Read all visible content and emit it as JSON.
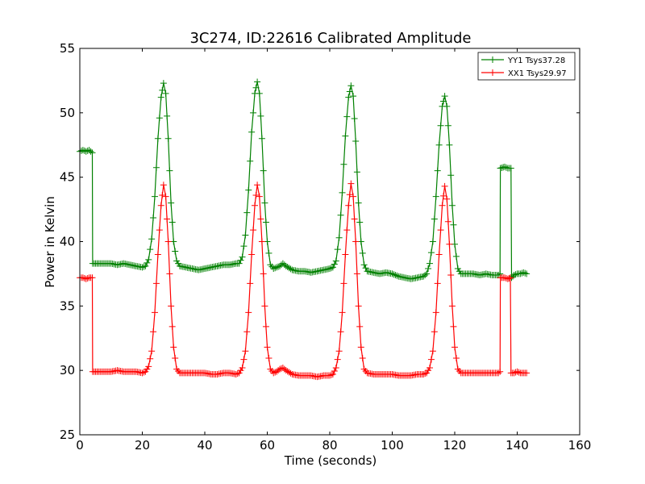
{
  "chart_data": {
    "type": "line",
    "title": "3C274, ID:22616 Calibrated Amplitude",
    "xlabel": "Time (seconds)",
    "ylabel": "Power in Kelvin",
    "xlim": [
      0,
      160
    ],
    "ylim": [
      25,
      55
    ],
    "xticks": [
      0,
      20,
      40,
      60,
      80,
      100,
      120,
      140,
      160
    ],
    "yticks": [
      25,
      30,
      35,
      40,
      45,
      50,
      55
    ],
    "grid": false,
    "legend_position": "top-right",
    "marker": "+",
    "series": [
      {
        "name": "YY1 Tsys37.28",
        "color": "#008000",
        "points": [
          [
            0.0,
            47.0
          ],
          [
            1.0,
            47.1
          ],
          [
            2.0,
            47.0
          ],
          [
            3.0,
            47.1
          ],
          [
            4.0,
            46.9
          ],
          [
            4.1,
            38.3
          ],
          [
            6.0,
            38.3
          ],
          [
            8.0,
            38.3
          ],
          [
            10.0,
            38.3
          ],
          [
            12.0,
            38.2
          ],
          [
            14.0,
            38.3
          ],
          [
            16.0,
            38.2
          ],
          [
            18.0,
            38.1
          ],
          [
            20.0,
            38.0
          ],
          [
            21.0,
            38.1
          ],
          [
            22.0,
            38.6
          ],
          [
            23.0,
            40.2
          ],
          [
            24.0,
            43.5
          ],
          [
            25.0,
            48.0
          ],
          [
            26.0,
            51.2
          ],
          [
            26.8,
            52.3
          ],
          [
            27.5,
            51.5
          ],
          [
            28.3,
            48.0
          ],
          [
            29.2,
            43.0
          ],
          [
            30.0,
            40.0
          ],
          [
            31.0,
            38.5
          ],
          [
            32.0,
            38.1
          ],
          [
            34.0,
            38.0
          ],
          [
            36.0,
            37.9
          ],
          [
            38.0,
            37.8
          ],
          [
            40.0,
            37.9
          ],
          [
            42.0,
            38.0
          ],
          [
            44.0,
            38.1
          ],
          [
            46.0,
            38.2
          ],
          [
            48.0,
            38.2
          ],
          [
            50.0,
            38.3
          ],
          [
            51.0,
            38.3
          ],
          [
            52.0,
            38.8
          ],
          [
            53.0,
            40.5
          ],
          [
            54.0,
            44.0
          ],
          [
            55.0,
            48.5
          ],
          [
            56.0,
            51.5
          ],
          [
            56.8,
            52.4
          ],
          [
            57.5,
            51.5
          ],
          [
            58.3,
            48.0
          ],
          [
            59.2,
            43.0
          ],
          [
            60.0,
            40.0
          ],
          [
            61.0,
            38.2
          ],
          [
            62.0,
            37.9
          ],
          [
            63.0,
            38.0
          ],
          [
            64.0,
            38.1
          ],
          [
            65.0,
            38.3
          ],
          [
            66.0,
            38.1
          ],
          [
            68.0,
            37.8
          ],
          [
            70.0,
            37.7
          ],
          [
            72.0,
            37.7
          ],
          [
            74.0,
            37.6
          ],
          [
            76.0,
            37.7
          ],
          [
            78.0,
            37.8
          ],
          [
            80.0,
            37.9
          ],
          [
            81.0,
            38.0
          ],
          [
            82.0,
            38.5
          ],
          [
            83.0,
            40.3
          ],
          [
            84.0,
            43.8
          ],
          [
            85.0,
            48.2
          ],
          [
            86.0,
            51.2
          ],
          [
            86.8,
            52.1
          ],
          [
            87.5,
            51.3
          ],
          [
            88.3,
            47.8
          ],
          [
            89.2,
            43.0
          ],
          [
            90.0,
            40.0
          ],
          [
            91.0,
            38.2
          ],
          [
            92.0,
            37.7
          ],
          [
            94.0,
            37.6
          ],
          [
            96.0,
            37.5
          ],
          [
            98.0,
            37.6
          ],
          [
            100.0,
            37.5
          ],
          [
            102.0,
            37.3
          ],
          [
            104.0,
            37.2
          ],
          [
            106.0,
            37.1
          ],
          [
            108.0,
            37.2
          ],
          [
            110.0,
            37.3
          ],
          [
            111.0,
            37.5
          ],
          [
            112.0,
            38.3
          ],
          [
            113.0,
            40.0
          ],
          [
            114.0,
            43.5
          ],
          [
            115.0,
            47.5
          ],
          [
            116.0,
            50.5
          ],
          [
            116.8,
            51.3
          ],
          [
            117.5,
            50.5
          ],
          [
            118.3,
            47.5
          ],
          [
            119.2,
            42.8
          ],
          [
            120.0,
            39.8
          ],
          [
            121.0,
            37.9
          ],
          [
            122.0,
            37.5
          ],
          [
            124.0,
            37.5
          ],
          [
            126.0,
            37.5
          ],
          [
            128.0,
            37.4
          ],
          [
            130.0,
            37.5
          ],
          [
            132.0,
            37.4
          ],
          [
            134.0,
            37.4
          ],
          [
            134.5,
            37.5
          ],
          [
            134.6,
            45.7
          ],
          [
            136.0,
            45.8
          ],
          [
            137.0,
            45.7
          ],
          [
            138.0,
            45.7
          ],
          [
            138.2,
            37.2
          ],
          [
            139.0,
            37.4
          ],
          [
            140.0,
            37.5
          ],
          [
            141.0,
            37.5
          ],
          [
            142.0,
            37.6
          ],
          [
            143.0,
            37.5
          ]
        ]
      },
      {
        "name": "XX1 Tsys29.97",
        "color": "#ff0000",
        "points": [
          [
            0.0,
            37.2
          ],
          [
            1.0,
            37.2
          ],
          [
            2.0,
            37.1
          ],
          [
            3.0,
            37.2
          ],
          [
            4.0,
            37.2
          ],
          [
            4.1,
            29.9
          ],
          [
            6.0,
            29.9
          ],
          [
            8.0,
            29.9
          ],
          [
            10.0,
            29.9
          ],
          [
            12.0,
            30.0
          ],
          [
            14.0,
            29.9
          ],
          [
            16.0,
            29.9
          ],
          [
            18.0,
            29.9
          ],
          [
            20.0,
            29.8
          ],
          [
            21.0,
            29.9
          ],
          [
            22.0,
            30.3
          ],
          [
            23.0,
            31.5
          ],
          [
            24.0,
            34.5
          ],
          [
            25.0,
            39.0
          ],
          [
            26.0,
            42.8
          ],
          [
            26.8,
            44.4
          ],
          [
            27.5,
            43.5
          ],
          [
            28.3,
            40.0
          ],
          [
            29.2,
            35.0
          ],
          [
            30.0,
            31.8
          ],
          [
            31.0,
            30.1
          ],
          [
            32.0,
            29.8
          ],
          [
            34.0,
            29.8
          ],
          [
            36.0,
            29.8
          ],
          [
            38.0,
            29.8
          ],
          [
            40.0,
            29.8
          ],
          [
            42.0,
            29.7
          ],
          [
            44.0,
            29.7
          ],
          [
            46.0,
            29.8
          ],
          [
            48.0,
            29.8
          ],
          [
            50.0,
            29.7
          ],
          [
            51.0,
            29.8
          ],
          [
            52.0,
            30.2
          ],
          [
            53.0,
            31.5
          ],
          [
            54.0,
            34.5
          ],
          [
            55.0,
            39.0
          ],
          [
            56.0,
            42.8
          ],
          [
            56.8,
            44.4
          ],
          [
            57.5,
            43.5
          ],
          [
            58.3,
            40.0
          ],
          [
            59.2,
            35.0
          ],
          [
            60.0,
            31.8
          ],
          [
            61.0,
            30.1
          ],
          [
            62.0,
            29.8
          ],
          [
            63.0,
            29.9
          ],
          [
            64.0,
            30.1
          ],
          [
            65.0,
            30.2
          ],
          [
            66.0,
            30.0
          ],
          [
            68.0,
            29.7
          ],
          [
            70.0,
            29.6
          ],
          [
            72.0,
            29.6
          ],
          [
            74.0,
            29.6
          ],
          [
            76.0,
            29.5
          ],
          [
            78.0,
            29.6
          ],
          [
            80.0,
            29.6
          ],
          [
            81.0,
            29.7
          ],
          [
            82.0,
            30.2
          ],
          [
            83.0,
            31.5
          ],
          [
            84.0,
            34.5
          ],
          [
            85.0,
            39.0
          ],
          [
            86.0,
            42.8
          ],
          [
            86.8,
            44.5
          ],
          [
            87.5,
            43.5
          ],
          [
            88.3,
            40.0
          ],
          [
            89.2,
            35.0
          ],
          [
            90.0,
            31.8
          ],
          [
            91.0,
            30.1
          ],
          [
            92.0,
            29.8
          ],
          [
            94.0,
            29.7
          ],
          [
            96.0,
            29.7
          ],
          [
            98.0,
            29.7
          ],
          [
            100.0,
            29.7
          ],
          [
            102.0,
            29.6
          ],
          [
            104.0,
            29.6
          ],
          [
            106.0,
            29.6
          ],
          [
            108.0,
            29.7
          ],
          [
            110.0,
            29.7
          ],
          [
            111.0,
            29.8
          ],
          [
            112.0,
            30.2
          ],
          [
            113.0,
            31.5
          ],
          [
            114.0,
            34.5
          ],
          [
            115.0,
            39.0
          ],
          [
            116.0,
            42.8
          ],
          [
            116.8,
            44.3
          ],
          [
            117.5,
            43.3
          ],
          [
            118.3,
            39.8
          ],
          [
            119.2,
            35.0
          ],
          [
            120.0,
            31.8
          ],
          [
            121.0,
            30.1
          ],
          [
            122.0,
            29.8
          ],
          [
            124.0,
            29.8
          ],
          [
            126.0,
            29.8
          ],
          [
            128.0,
            29.8
          ],
          [
            130.0,
            29.8
          ],
          [
            132.0,
            29.8
          ],
          [
            134.0,
            29.8
          ],
          [
            134.5,
            29.9
          ],
          [
            134.6,
            37.2
          ],
          [
            136.0,
            37.2
          ],
          [
            137.0,
            37.1
          ],
          [
            137.8,
            37.2
          ],
          [
            138.0,
            29.8
          ],
          [
            139.0,
            29.8
          ],
          [
            140.0,
            29.9
          ],
          [
            141.0,
            29.8
          ],
          [
            142.0,
            29.8
          ],
          [
            143.0,
            29.8
          ]
        ]
      }
    ]
  }
}
